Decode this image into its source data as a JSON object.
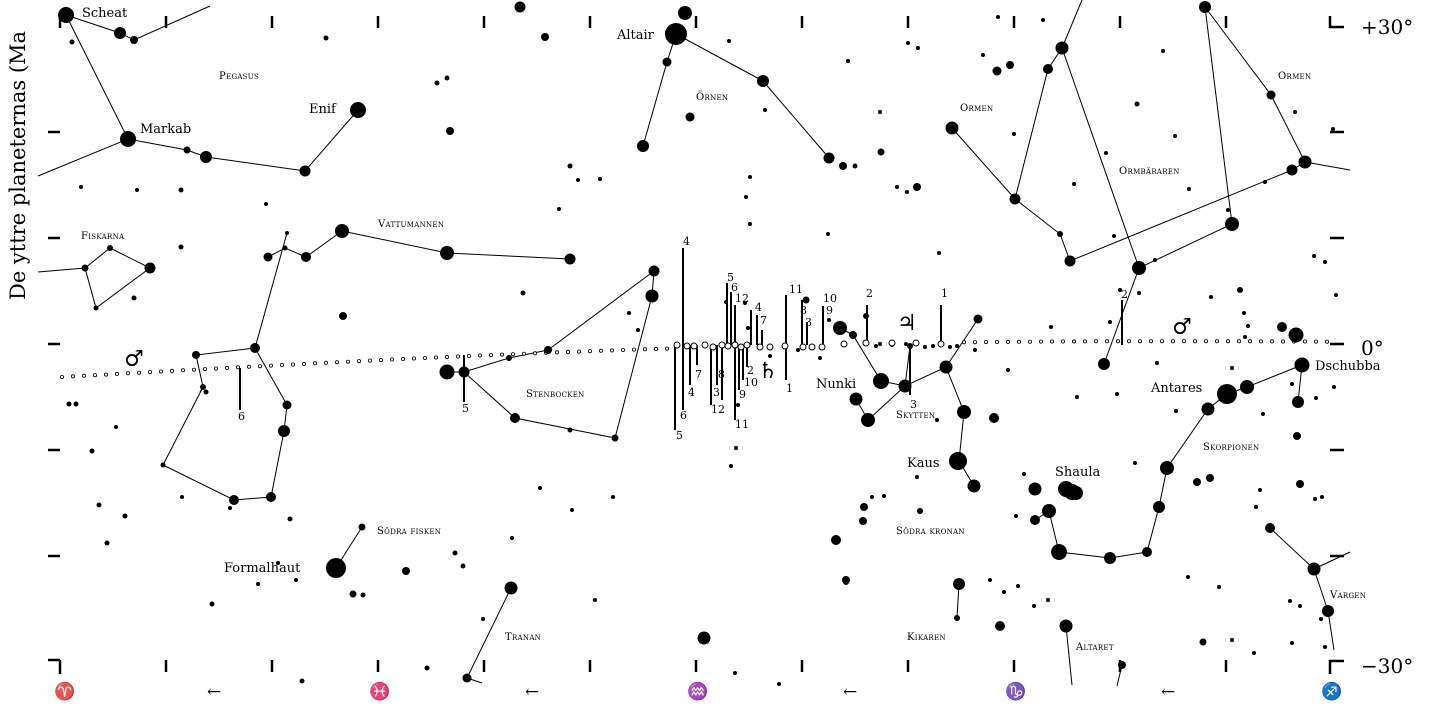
{
  "title": "De yttre planeternas (Ma",
  "declination_labels": {
    "top": "+30°",
    "zero": "0°",
    "bottom": "−30°"
  },
  "zodiac_symbols": [
    {
      "name": "aries-icon",
      "glyph": "♈"
    },
    {
      "name": "pisces-icon",
      "glyph": "♓"
    },
    {
      "name": "aquarius-icon",
      "glyph": "♒"
    },
    {
      "name": "capricorn-icon",
      "glyph": "♑"
    },
    {
      "name": "sagittarius-icon",
      "glyph": "♐"
    }
  ],
  "direction_arrow": "←",
  "planet_symbols": {
    "mars": "♂",
    "jupiter": "♃",
    "saturn": "♄"
  },
  "star_names": {
    "scheat": "Scheat",
    "markab": "Markab",
    "enif": "Enif",
    "altair": "Altair",
    "formalhaut": "Formalhaut",
    "nunki": "Nunki",
    "kaus": "Kaus",
    "shaula": "Shaula",
    "antares": "Antares",
    "dschubba": "Dschubba"
  },
  "constellations": {
    "pegasus": "Pegasus",
    "ornen": "Örnen",
    "ormen_left": "Ormen",
    "ormen_right": "Ormen",
    "ormbararen": "Ormbäraren",
    "fiskarna": "Fiskarna",
    "vattumannen": "Vattumannen",
    "stenbocken": "Stenbocken",
    "skytten": "Skytten",
    "sodra_fisken": "Södra fisken",
    "sodra_kronan": "Södra kronan",
    "skorpionen": "Skorpionen",
    "tranan": "Tranan",
    "kikaren": "Kikaren",
    "altaret": "Altaret",
    "vargen": "Vargen"
  },
  "tick_numbers": {
    "mars_left_6": "6",
    "stenbocken_5": "5",
    "saturn_4": "4",
    "saturn_5b": "5",
    "saturn_6b": "6",
    "saturn_5": "5",
    "saturn_6": "6",
    "saturn_12": "12",
    "saturn_4b": "4",
    "saturn_7": "7",
    "saturn_7b": "7",
    "saturn_4c": "4",
    "saturn_8": "8",
    "saturn_3": "3",
    "saturn_2": "2",
    "saturn_10": "10",
    "saturn_9": "9",
    "saturn_12b": "12",
    "saturn_11": "11",
    "saturn_1": "1",
    "saturn_11b": "11",
    "saturn_8b": "8",
    "saturn_3b": "3",
    "saturn_10b": "10",
    "saturn_9b": "9",
    "jup_2": "2",
    "jup_1": "1",
    "jup_3": "3",
    "mars_right_2": "2"
  }
}
